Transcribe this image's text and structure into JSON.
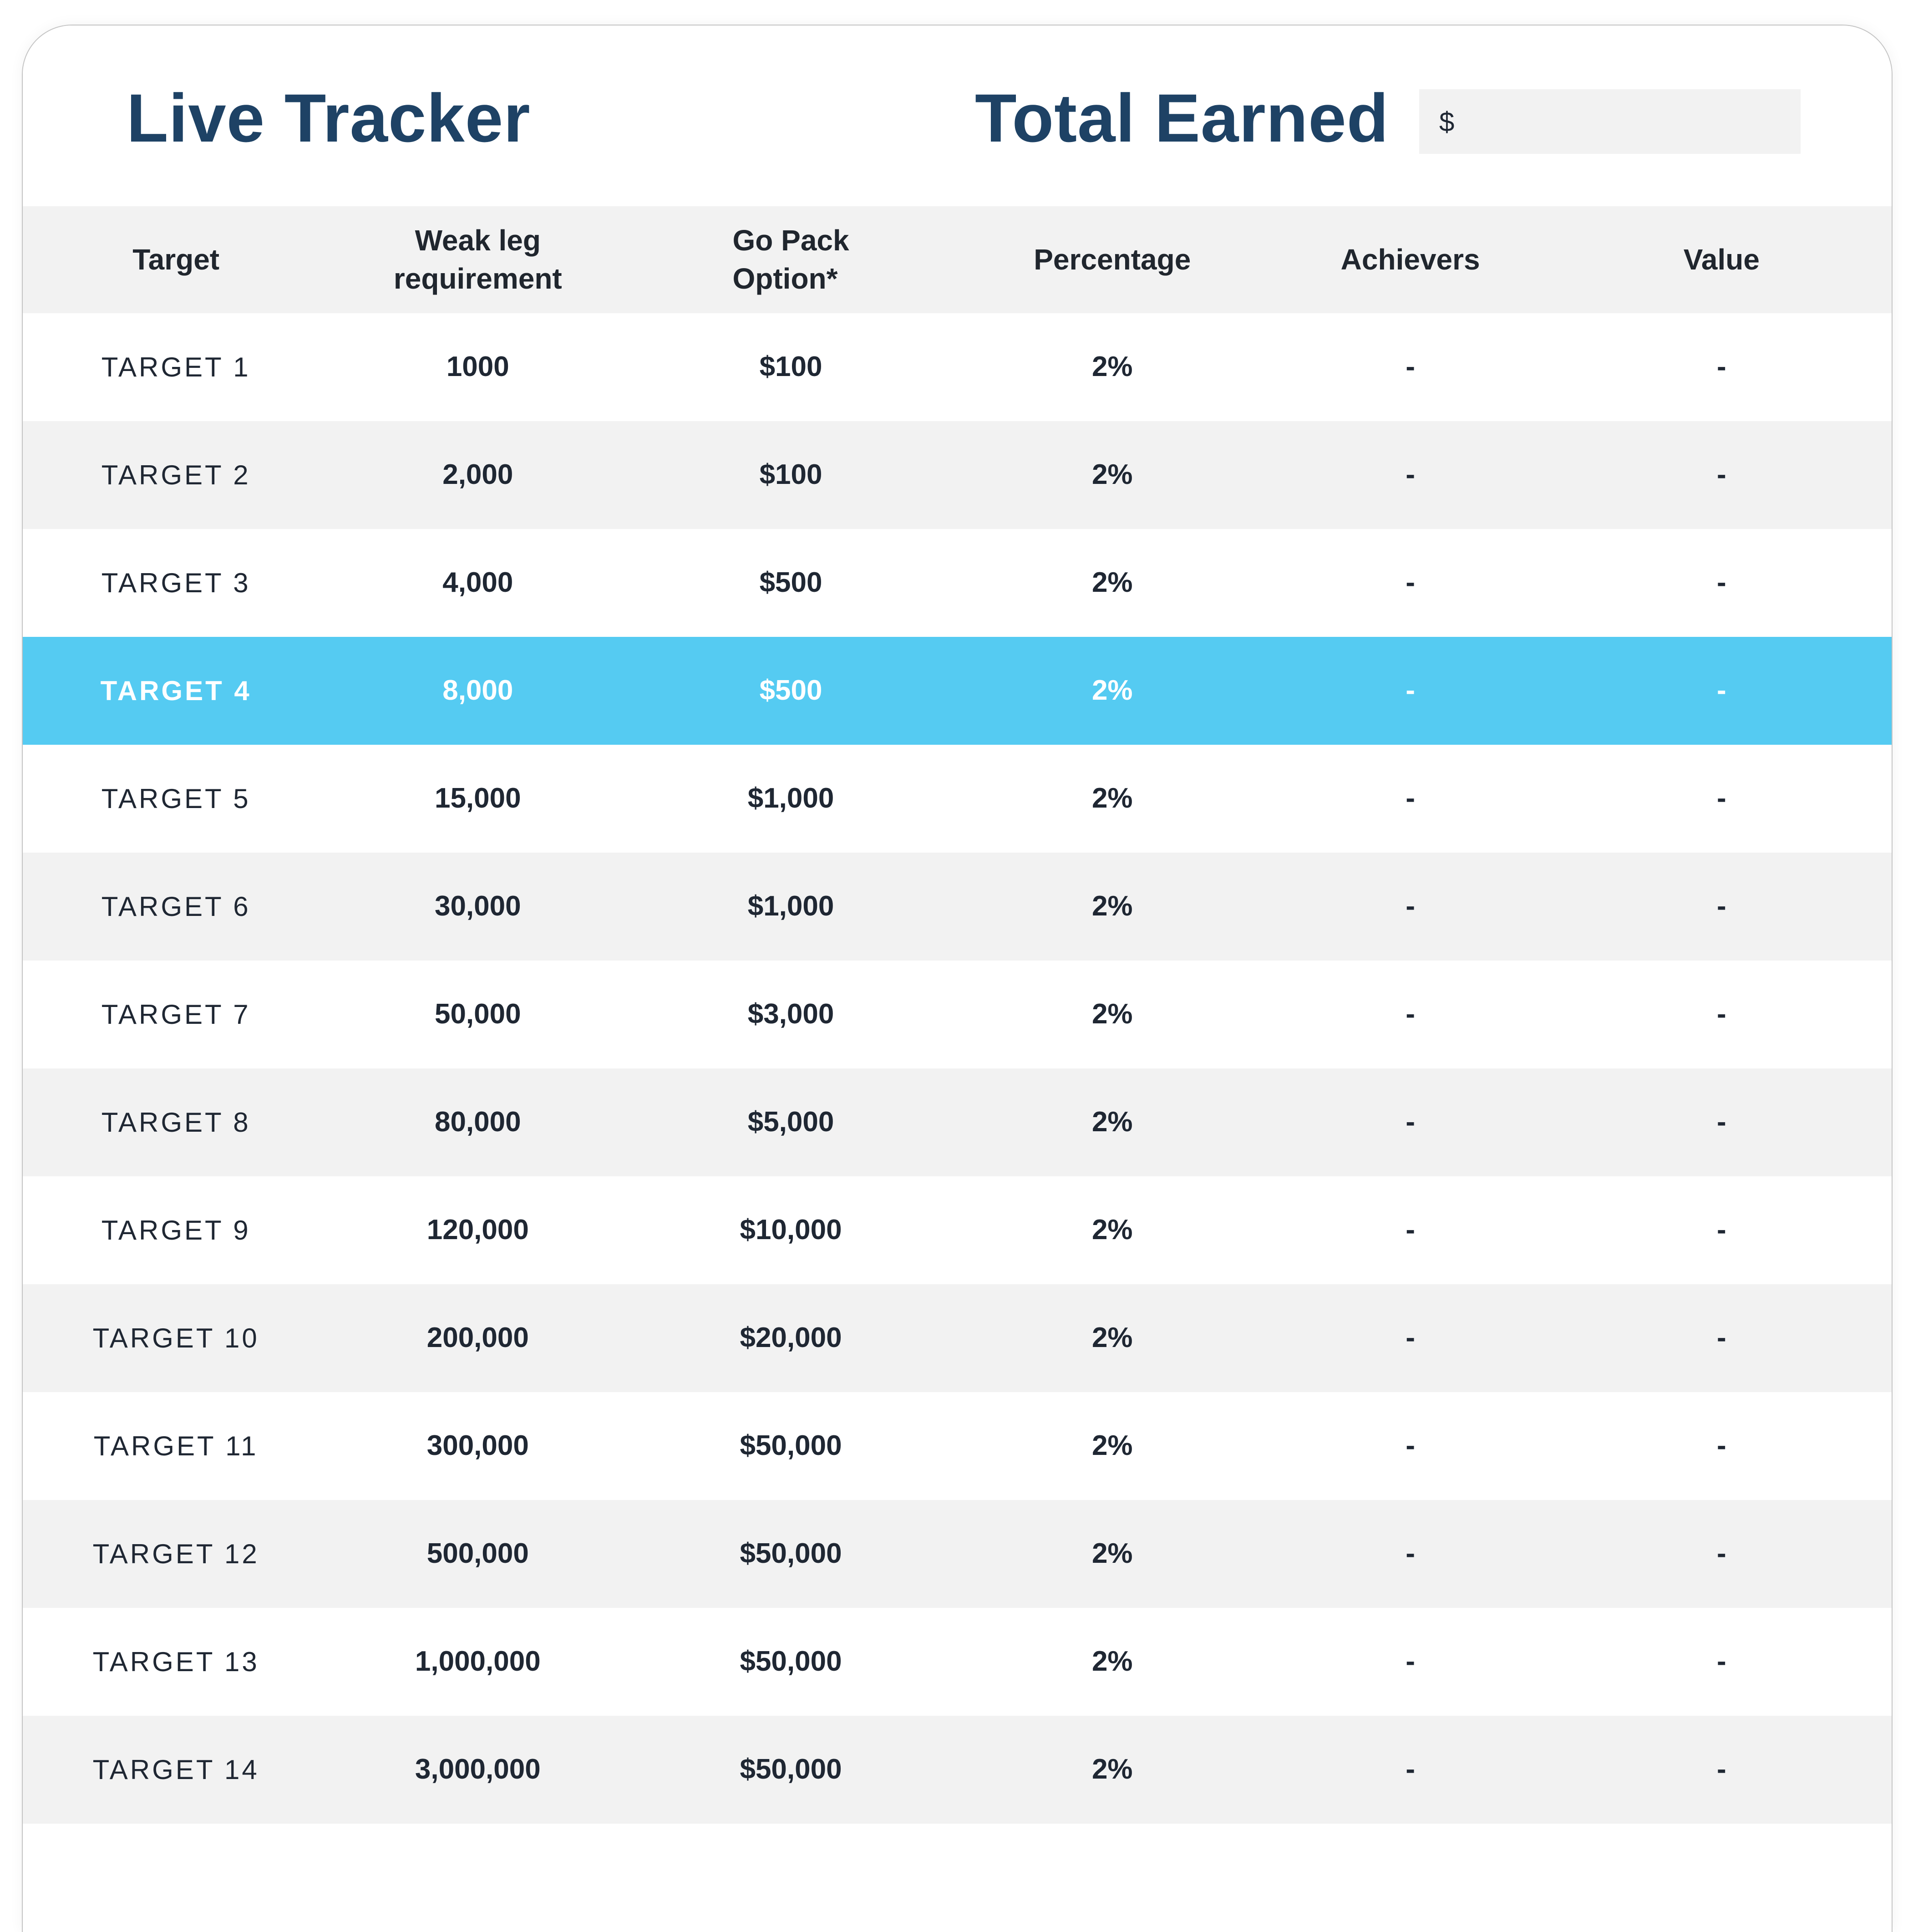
{
  "header": {
    "title": "Live Tracker",
    "total_earned_label": "Total Earned",
    "currency_symbol": "$",
    "total_earned_value": ""
  },
  "colors": {
    "accent_blue": "#55CBF2",
    "navy": "#1E4265",
    "row_gray": "#F2F2F2",
    "text_dark": "#1F2733"
  },
  "table": {
    "columns": {
      "target": "Target",
      "weak_leg_line1": "Weak leg",
      "weak_leg_line2": "requirement",
      "go_pack_line1": "Go Pack",
      "go_pack_line2": "Option*",
      "percentage": "Percentage",
      "achievers": "Achievers",
      "value": "Value"
    },
    "highlighted_row_index": 3,
    "rows": [
      {
        "target": "TARGET 1",
        "weak_leg": "1000",
        "go_pack": "$100",
        "percentage": "2%",
        "achievers": "-",
        "value": "-"
      },
      {
        "target": "TARGET 2",
        "weak_leg": "2,000",
        "go_pack": "$100",
        "percentage": "2%",
        "achievers": "-",
        "value": "-"
      },
      {
        "target": "TARGET 3",
        "weak_leg": "4,000",
        "go_pack": "$500",
        "percentage": "2%",
        "achievers": "-",
        "value": "-"
      },
      {
        "target": "TARGET 4",
        "weak_leg": "8,000",
        "go_pack": "$500",
        "percentage": "2%",
        "achievers": "-",
        "value": "-"
      },
      {
        "target": "TARGET 5",
        "weak_leg": "15,000",
        "go_pack": "$1,000",
        "percentage": "2%",
        "achievers": "-",
        "value": "-"
      },
      {
        "target": "TARGET 6",
        "weak_leg": "30,000",
        "go_pack": "$1,000",
        "percentage": "2%",
        "achievers": "-",
        "value": "-"
      },
      {
        "target": "TARGET 7",
        "weak_leg": "50,000",
        "go_pack": "$3,000",
        "percentage": "2%",
        "achievers": "-",
        "value": "-"
      },
      {
        "target": "TARGET 8",
        "weak_leg": "80,000",
        "go_pack": "$5,000",
        "percentage": "2%",
        "achievers": "-",
        "value": "-"
      },
      {
        "target": "TARGET 9",
        "weak_leg": "120,000",
        "go_pack": "$10,000",
        "percentage": "2%",
        "achievers": "-",
        "value": "-"
      },
      {
        "target": "TARGET 10",
        "weak_leg": "200,000",
        "go_pack": "$20,000",
        "percentage": "2%",
        "achievers": "-",
        "value": "-"
      },
      {
        "target": "TARGET 11",
        "weak_leg": "300,000",
        "go_pack": "$50,000",
        "percentage": "2%",
        "achievers": "-",
        "value": "-"
      },
      {
        "target": "TARGET 12",
        "weak_leg": "500,000",
        "go_pack": "$50,000",
        "percentage": "2%",
        "achievers": "-",
        "value": "-"
      },
      {
        "target": "TARGET 13",
        "weak_leg": "1,000,000",
        "go_pack": "$50,000",
        "percentage": "2%",
        "achievers": "-",
        "value": "-"
      },
      {
        "target": "TARGET 14",
        "weak_leg": "3,000,000",
        "go_pack": "$50,000",
        "percentage": "2%",
        "achievers": "-",
        "value": "-"
      }
    ]
  }
}
